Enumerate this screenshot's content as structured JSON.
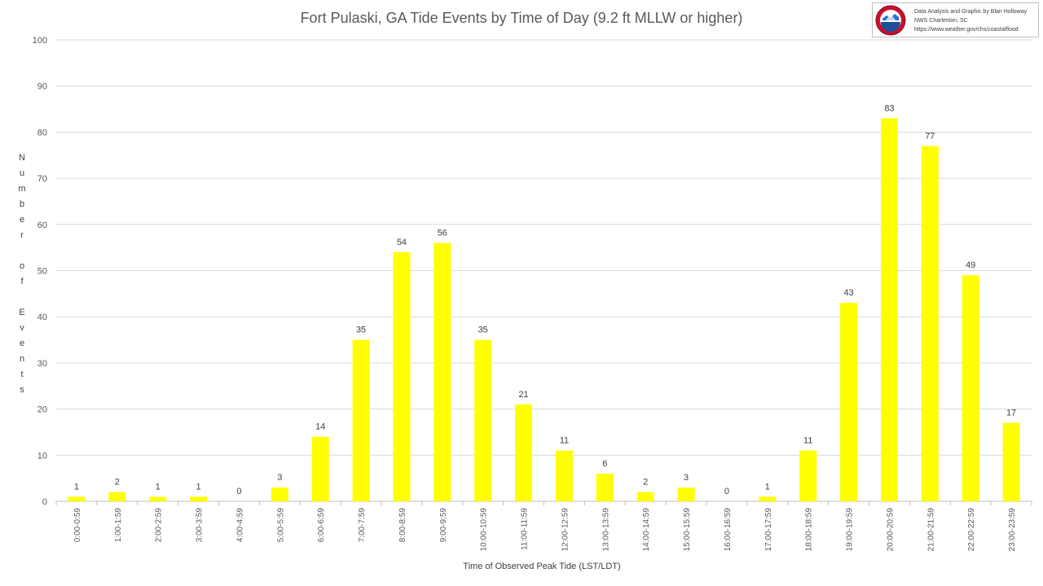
{
  "chart_data": {
    "type": "bar",
    "title": "Fort Pulaski, GA Tide Events by Time of Day (9.2 ft MLLW or higher)",
    "xlabel": "Time of Observed Peak Tide (LST/LDT)",
    "ylabel": "Number of Events",
    "ylim": [
      0,
      100
    ],
    "yticks": [
      0,
      10,
      20,
      30,
      40,
      50,
      60,
      70,
      80,
      90,
      100
    ],
    "grid": true,
    "bar_color": "#ffff00",
    "categories": [
      "0:00-0:59",
      "1:00-1:59",
      "2:00-2:59",
      "3:00-3:59",
      "4:00-4:59",
      "5:00-5:59",
      "6:00-6:59",
      "7:00-7:59",
      "8:00-8:59",
      "9:00-9:59",
      "10:00-10:59",
      "11:00-11:59",
      "12:00-12:59",
      "13:00-13:59",
      "14:00-14:59",
      "15:00-15:59",
      "16:00-16:59",
      "17:00-17:59",
      "18:00-18:59",
      "19:00-19:59",
      "20:00-20:59",
      "21:00-21:59",
      "22:00-22:59",
      "23:00-23:59"
    ],
    "values": [
      1,
      2,
      1,
      1,
      0,
      3,
      14,
      35,
      54,
      56,
      35,
      21,
      11,
      6,
      2,
      3,
      0,
      1,
      11,
      43,
      83,
      77,
      49,
      17
    ]
  },
  "credit": {
    "line1": "Data Analysis and Graphic by Blair Holloway",
    "line2": "NWS Charleston, SC",
    "line3": "https://www.weather.gov/chs/coastalflood",
    "logo_icon": "nws-logo-icon"
  }
}
